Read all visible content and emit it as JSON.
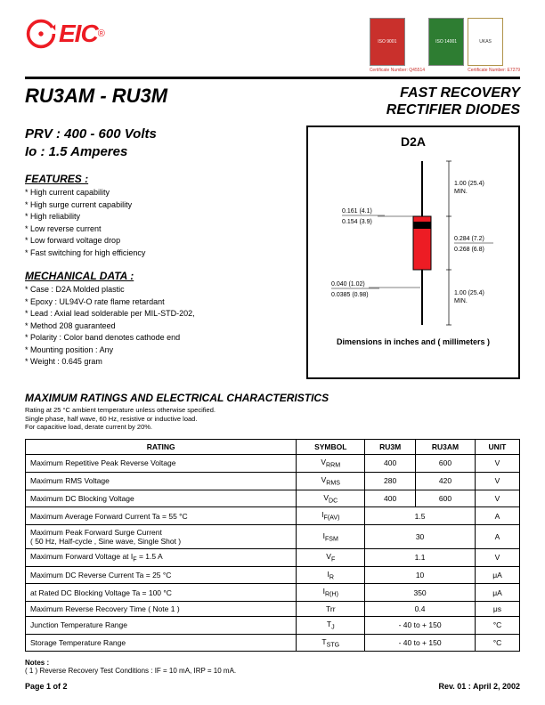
{
  "header": {
    "logo_text": "EIC",
    "certs": [
      {
        "label": "ISO\n9001",
        "class": "iso9001",
        "num": "Certificate Number: Q45514"
      },
      {
        "label": "ISO\n14001",
        "class": "iso14001",
        "num": ""
      },
      {
        "label": "UKAS",
        "class": "ukas",
        "num": "Certificate Number: E7279"
      }
    ]
  },
  "title": {
    "part": "RU3AM - RU3M",
    "product_line1": "FAST RECOVERY",
    "product_line2": "RECTIFIER DIODES"
  },
  "specs": {
    "prv": "PRV : 400 - 600 Volts",
    "io": "Io : 1.5 Amperes"
  },
  "features": {
    "heading": "FEATURES :",
    "items": [
      "High current capability",
      "High surge current capability",
      "High reliability",
      "Low reverse current",
      "Low forward voltage drop",
      "Fast switching for high efficiency"
    ]
  },
  "mechanical": {
    "heading": "MECHANICAL  DATA :",
    "items": [
      "Case : D2A  Molded plastic",
      "Epoxy : UL94V-O rate flame retardant",
      "Lead : Axial lead solderable per MIL-STD-202,",
      "          Method 208 guaranteed",
      "Polarity : Color band denotes cathode end",
      "Mounting  position : Any",
      "Weight : 0.645 gram"
    ]
  },
  "diagram": {
    "title": "D2A",
    "caption": "Dimensions in inches and ( millimeters )",
    "body_color": "#ed1c24",
    "band_color": "#000000",
    "lead_color": "#000000",
    "labels": {
      "body_w_max": "0.161 (4.1)",
      "body_w_min": "0.154 (3.9)",
      "body_h_max": "0.284 (7.2)",
      "body_h_min": "0.268 (6.8)",
      "lead_d_max": "0.040 (1.02)",
      "lead_d_min": "0.0385 (0.98)",
      "lead_len_top": "1.00 (25.4)\nMIN.",
      "lead_len_bot": "1.00 (25.4)\nMIN."
    }
  },
  "ratings": {
    "title": "MAXIMUM  RATINGS  AND  ELECTRICAL  CHARACTERISTICS",
    "notes": [
      "Rating at  25 °C ambient temperature unless otherwise specified.",
      "Single phase, half wave, 60 Hz, resistive or inductive load.",
      "For capacitive load, derate current by 20%."
    ],
    "columns": [
      "RATING",
      "SYMBOL",
      "RU3M",
      "RU3AM",
      "UNIT"
    ],
    "rows": [
      {
        "name": "Maximum Repetitive Peak Reverse Voltage",
        "symbol": "V<sub>RRM</sub>",
        "v1": "400",
        "v2": "600",
        "unit": "V"
      },
      {
        "name": "Maximum RMS Voltage",
        "symbol": "V<sub>RMS</sub>",
        "v1": "280",
        "v2": "420",
        "unit": "V"
      },
      {
        "name": "Maximum DC Blocking Voltage",
        "symbol": "V<sub>DC</sub>",
        "v1": "400",
        "v2": "600",
        "unit": "V"
      },
      {
        "name": "Maximum Average Forward Current   Ta = 55 °C",
        "symbol": "I<sub>F(AV)</sub>",
        "span": "1.5",
        "unit": "A"
      },
      {
        "name": "Maximum Peak Forward Surge Current<br>( 50 Hz, Half-cycle , Sine wave, Single Shot )",
        "symbol": "I<sub>FSM</sub>",
        "span": "30",
        "unit": "A"
      },
      {
        "name": "Maximum  Forward Voltage at I<sub>F</sub> = 1.5 A",
        "symbol": "V<sub>F</sub>",
        "span": "1.1",
        "unit": "V"
      },
      {
        "name": "Maximum DC Reverse Current        Ta = 25 °C",
        "symbol": "I<sub>R</sub>",
        "span": "10",
        "unit": "μA"
      },
      {
        "name": "at Rated DC Blocking Voltage         Ta = 100 °C",
        "symbol": "I<sub>R(H)</sub>",
        "span": "350",
        "unit": "μA"
      },
      {
        "name": "Maximum Reverse Recovery Time   ( Note 1 )",
        "symbol": "Trr",
        "span": "0.4",
        "unit": "μs"
      },
      {
        "name": "Junction Temperature Range",
        "symbol": "T<sub>J</sub>",
        "span": "- 40 to + 150",
        "unit": "°C"
      },
      {
        "name": "Storage Temperature Range",
        "symbol": "T<sub>STG</sub>",
        "span": "- 40 to + 150",
        "unit": "°C"
      }
    ]
  },
  "footnotes": {
    "heading": "Notes :",
    "items": [
      "( 1 )  Reverse Recovery Test Conditions : IF = 10 mA, IRP = 10 mA."
    ]
  },
  "footer": {
    "left": "Page 1 of 2",
    "right": "Rev. 01 : April 2, 2002"
  }
}
